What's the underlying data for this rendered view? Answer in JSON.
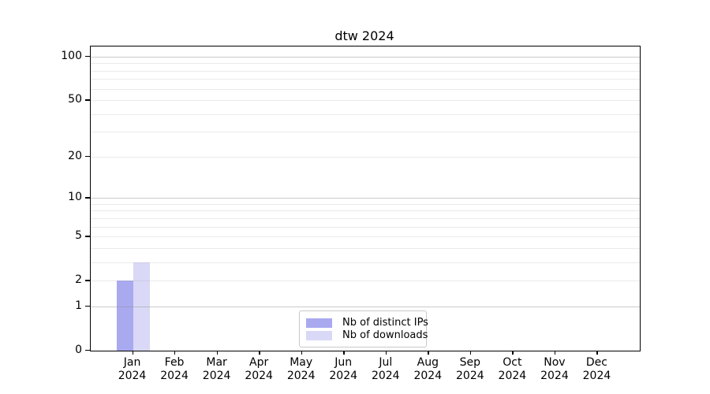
{
  "title": "dtw 2024",
  "chart_data": {
    "type": "bar",
    "title": "dtw 2024",
    "categories": [
      "Jan 2024",
      "Feb 2024",
      "Mar 2024",
      "Apr 2024",
      "May 2024",
      "Jun 2024",
      "Jul 2024",
      "Aug 2024",
      "Sep 2024",
      "Oct 2024",
      "Nov 2024",
      "Dec 2024"
    ],
    "x_tick_labels": [
      [
        "Jan",
        "2024"
      ],
      [
        "Feb",
        "2024"
      ],
      [
        "Mar",
        "2024"
      ],
      [
        "Apr",
        "2024"
      ],
      [
        "May",
        "2024"
      ],
      [
        "Jun",
        "2024"
      ],
      [
        "Jul",
        "2024"
      ],
      [
        "Aug",
        "2024"
      ],
      [
        "Sep",
        "2024"
      ],
      [
        "Oct",
        "2024"
      ],
      [
        "Nov",
        "2024"
      ],
      [
        "Dec",
        "2024"
      ]
    ],
    "series": [
      {
        "name": "Nb of distinct IPs",
        "color": "#a9a9f0",
        "values": [
          2,
          0,
          0,
          0,
          0,
          0,
          0,
          0,
          0,
          0,
          0,
          0
        ]
      },
      {
        "name": "Nb of downloads",
        "color": "#d9d9f7",
        "values": [
          3,
          0,
          0,
          0,
          0,
          0,
          0,
          0,
          0,
          0,
          0,
          0
        ]
      }
    ],
    "yscale": "log1p",
    "ylim": [
      0,
      117
    ],
    "y_labeled_ticks": [
      0,
      1,
      2,
      5,
      10,
      20,
      50,
      100
    ],
    "y_major_grid": [
      1,
      10,
      100
    ],
    "y_minor_grid": [
      2,
      3,
      4,
      5,
      6,
      7,
      8,
      9,
      20,
      30,
      40,
      50,
      60,
      70,
      80,
      90
    ],
    "grid": "on",
    "legend_position": "lower center",
    "colors": {
      "axis": "#000000",
      "major_grid": "#c6c6c6",
      "minor_grid": "#e9e9e9",
      "bar_distinct_ips": "#a9a9f0",
      "bar_downloads": "#d9d9f7",
      "legend_border": "#c9c9c9"
    }
  }
}
